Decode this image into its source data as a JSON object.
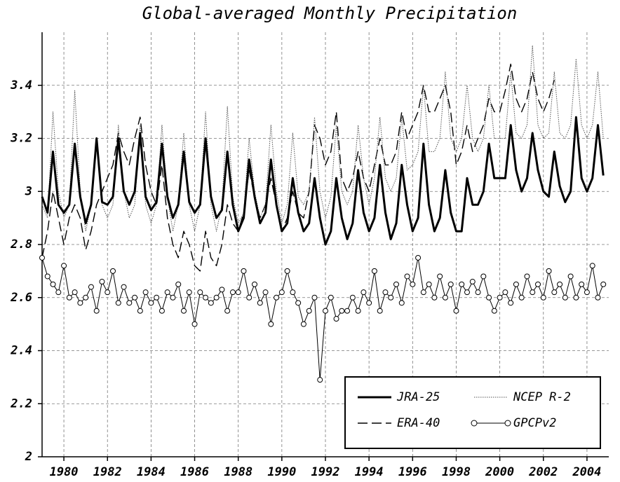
{
  "chart_data": {
    "type": "line",
    "title": "Global-averaged Monthly Precipitation",
    "x": [
      1979,
      1979.25,
      1979.5,
      1979.75,
      1980,
      1980.25,
      1980.5,
      1980.75,
      1981,
      1981.25,
      1981.5,
      1981.75,
      1982,
      1982.25,
      1982.5,
      1982.75,
      1983,
      1983.25,
      1983.5,
      1983.75,
      1984,
      1984.25,
      1984.5,
      1984.75,
      1985,
      1985.25,
      1985.5,
      1985.75,
      1986,
      1986.25,
      1986.5,
      1986.75,
      1987,
      1987.25,
      1987.5,
      1987.75,
      1988,
      1988.25,
      1988.5,
      1988.75,
      1989,
      1989.25,
      1989.5,
      1989.75,
      1990,
      1990.25,
      1990.5,
      1990.75,
      1991,
      1991.25,
      1991.5,
      1991.75,
      1992,
      1992.25,
      1992.5,
      1992.75,
      1993,
      1993.25,
      1993.5,
      1993.75,
      1994,
      1994.25,
      1994.5,
      1994.75,
      1995,
      1995.25,
      1995.5,
      1995.75,
      1996,
      1996.25,
      1996.5,
      1996.75,
      1997,
      1997.25,
      1997.5,
      1997.75,
      1998,
      1998.25,
      1998.5,
      1998.75,
      1999,
      1999.25,
      1999.5,
      1999.75,
      2000,
      2000.25,
      2000.5,
      2000.75,
      2001,
      2001.25,
      2001.5,
      2001.75,
      2002,
      2002.25,
      2002.5,
      2002.75,
      2003,
      2003.25,
      2003.5,
      2003.75,
      2004,
      2004.25,
      2004.5,
      2004.75
    ],
    "series": [
      {
        "name": "JRA-25",
        "color": "#000000",
        "line_style": "solid",
        "line_width": 3,
        "values": [
          2.98,
          2.92,
          3.15,
          2.95,
          2.92,
          2.95,
          3.18,
          2.98,
          2.88,
          2.95,
          3.2,
          2.96,
          2.95,
          2.98,
          3.2,
          3.0,
          2.95,
          3.0,
          3.22,
          2.98,
          2.93,
          2.96,
          3.18,
          2.98,
          2.9,
          2.95,
          3.15,
          2.96,
          2.92,
          2.95,
          3.2,
          2.98,
          2.9,
          2.93,
          3.15,
          2.95,
          2.85,
          2.9,
          3.12,
          2.98,
          2.88,
          2.92,
          3.12,
          2.95,
          2.85,
          2.88,
          3.05,
          2.92,
          2.85,
          2.88,
          3.05,
          2.9,
          2.8,
          2.85,
          3.05,
          2.9,
          2.82,
          2.88,
          3.08,
          2.92,
          2.85,
          2.9,
          3.1,
          2.92,
          2.82,
          2.88,
          3.1,
          2.95,
          2.85,
          2.9,
          3.18,
          2.95,
          2.85,
          2.9,
          3.08,
          2.92,
          2.85,
          2.85,
          3.05,
          2.95,
          2.95,
          3.0,
          3.18,
          3.05,
          3.05,
          3.05,
          3.25,
          3.08,
          3.0,
          3.05,
          3.22,
          3.08,
          3.0,
          2.98,
          3.15,
          3.02,
          2.96,
          3.0,
          3.28,
          3.05,
          3.0,
          3.05,
          3.25,
          3.06
        ]
      },
      {
        "name": "NCEP R-2",
        "color": "#555555",
        "line_style": "dotted",
        "line_width": 1,
        "values": [
          2.95,
          2.9,
          3.3,
          3.0,
          2.9,
          2.95,
          3.38,
          3.0,
          2.85,
          2.95,
          3.2,
          2.95,
          2.9,
          2.95,
          3.25,
          3.0,
          2.9,
          2.95,
          3.25,
          2.95,
          2.88,
          2.95,
          3.25,
          2.98,
          2.85,
          2.95,
          3.22,
          2.95,
          2.85,
          2.95,
          3.3,
          2.95,
          2.85,
          2.95,
          3.32,
          2.98,
          2.88,
          2.92,
          3.2,
          3.0,
          2.9,
          2.95,
          3.25,
          3.0,
          2.88,
          2.95,
          3.22,
          2.98,
          2.95,
          3.0,
          3.28,
          3.0,
          2.9,
          2.98,
          3.25,
          3.0,
          2.95,
          3.0,
          3.25,
          3.05,
          2.95,
          3.05,
          3.28,
          3.05,
          3.0,
          3.05,
          3.28,
          3.08,
          3.1,
          3.15,
          3.4,
          3.15,
          3.15,
          3.2,
          3.45,
          3.2,
          3.15,
          3.2,
          3.4,
          3.2,
          3.15,
          3.2,
          3.4,
          3.2,
          3.2,
          3.2,
          3.45,
          3.22,
          3.2,
          3.25,
          3.55,
          3.25,
          3.2,
          3.22,
          3.45,
          3.22,
          3.2,
          3.25,
          3.5,
          3.25,
          3.2,
          3.25,
          3.45,
          3.2
        ]
      },
      {
        "name": "ERA-40",
        "color": "#000000",
        "line_style": "dashed",
        "line_width": 1.4,
        "values": [
          2.75,
          2.85,
          3.0,
          2.9,
          2.8,
          2.9,
          2.95,
          2.9,
          2.78,
          2.85,
          2.95,
          3.0,
          3.05,
          3.1,
          3.22,
          3.15,
          3.1,
          3.2,
          3.28,
          3.1,
          3.0,
          2.95,
          3.1,
          2.9,
          2.8,
          2.75,
          2.85,
          2.8,
          2.72,
          2.7,
          2.85,
          2.75,
          2.72,
          2.8,
          2.95,
          2.88,
          2.85,
          2.92,
          3.08,
          2.98,
          2.9,
          2.95,
          3.05,
          2.95,
          2.85,
          2.9,
          3.0,
          2.92,
          2.9,
          3.0,
          3.25,
          3.2,
          3.1,
          3.15,
          3.3,
          3.05,
          3.0,
          3.05,
          3.15,
          3.05,
          3.0,
          3.1,
          3.2,
          3.1,
          3.1,
          3.15,
          3.3,
          3.2,
          3.25,
          3.3,
          3.4,
          3.3,
          3.3,
          3.35,
          3.4,
          3.3,
          3.1,
          3.15,
          3.25,
          3.15,
          3.2,
          3.25,
          3.35,
          3.3,
          3.3,
          3.38,
          3.48,
          3.35,
          3.3,
          3.35,
          3.45,
          3.35,
          3.3,
          3.35,
          3.42,
          null,
          null,
          null,
          null,
          null,
          null,
          null,
          null,
          null
        ]
      },
      {
        "name": "GPCPv2",
        "color": "#000000",
        "line_style": "solid",
        "line_width": 1,
        "marker": "circle",
        "values": [
          2.75,
          2.68,
          2.65,
          2.62,
          2.72,
          2.6,
          2.62,
          2.58,
          2.6,
          2.64,
          2.55,
          2.66,
          2.62,
          2.7,
          2.58,
          2.64,
          2.58,
          2.6,
          2.55,
          2.62,
          2.58,
          2.6,
          2.55,
          2.62,
          2.6,
          2.65,
          2.55,
          2.62,
          2.5,
          2.62,
          2.6,
          2.58,
          2.6,
          2.63,
          2.55,
          2.62,
          2.62,
          2.7,
          2.6,
          2.65,
          2.58,
          2.62,
          2.5,
          2.6,
          2.62,
          2.7,
          2.62,
          2.58,
          2.5,
          2.55,
          2.6,
          2.29,
          2.55,
          2.6,
          2.52,
          2.55,
          2.55,
          2.6,
          2.55,
          2.62,
          2.58,
          2.7,
          2.55,
          2.62,
          2.6,
          2.65,
          2.58,
          2.68,
          2.65,
          2.75,
          2.62,
          2.65,
          2.6,
          2.68,
          2.6,
          2.65,
          2.55,
          2.65,
          2.62,
          2.66,
          2.62,
          2.68,
          2.6,
          2.55,
          2.6,
          2.62,
          2.58,
          2.65,
          2.6,
          2.68,
          2.62,
          2.65,
          2.6,
          2.7,
          2.62,
          2.65,
          2.6,
          2.68,
          2.6,
          2.65,
          2.62,
          2.72,
          2.6,
          2.65
        ]
      }
    ],
    "xlim": [
      1979,
      2005
    ],
    "xticks": [
      1980,
      1982,
      1984,
      1986,
      1988,
      1990,
      1992,
      1994,
      1996,
      1998,
      2000,
      2002,
      2004
    ],
    "ylim": [
      2,
      3.6
    ],
    "yticks": [
      2,
      2.2,
      2.4,
      2.6,
      2.8,
      3,
      3.2,
      3.4
    ],
    "grid": true,
    "legend": "lower right"
  }
}
